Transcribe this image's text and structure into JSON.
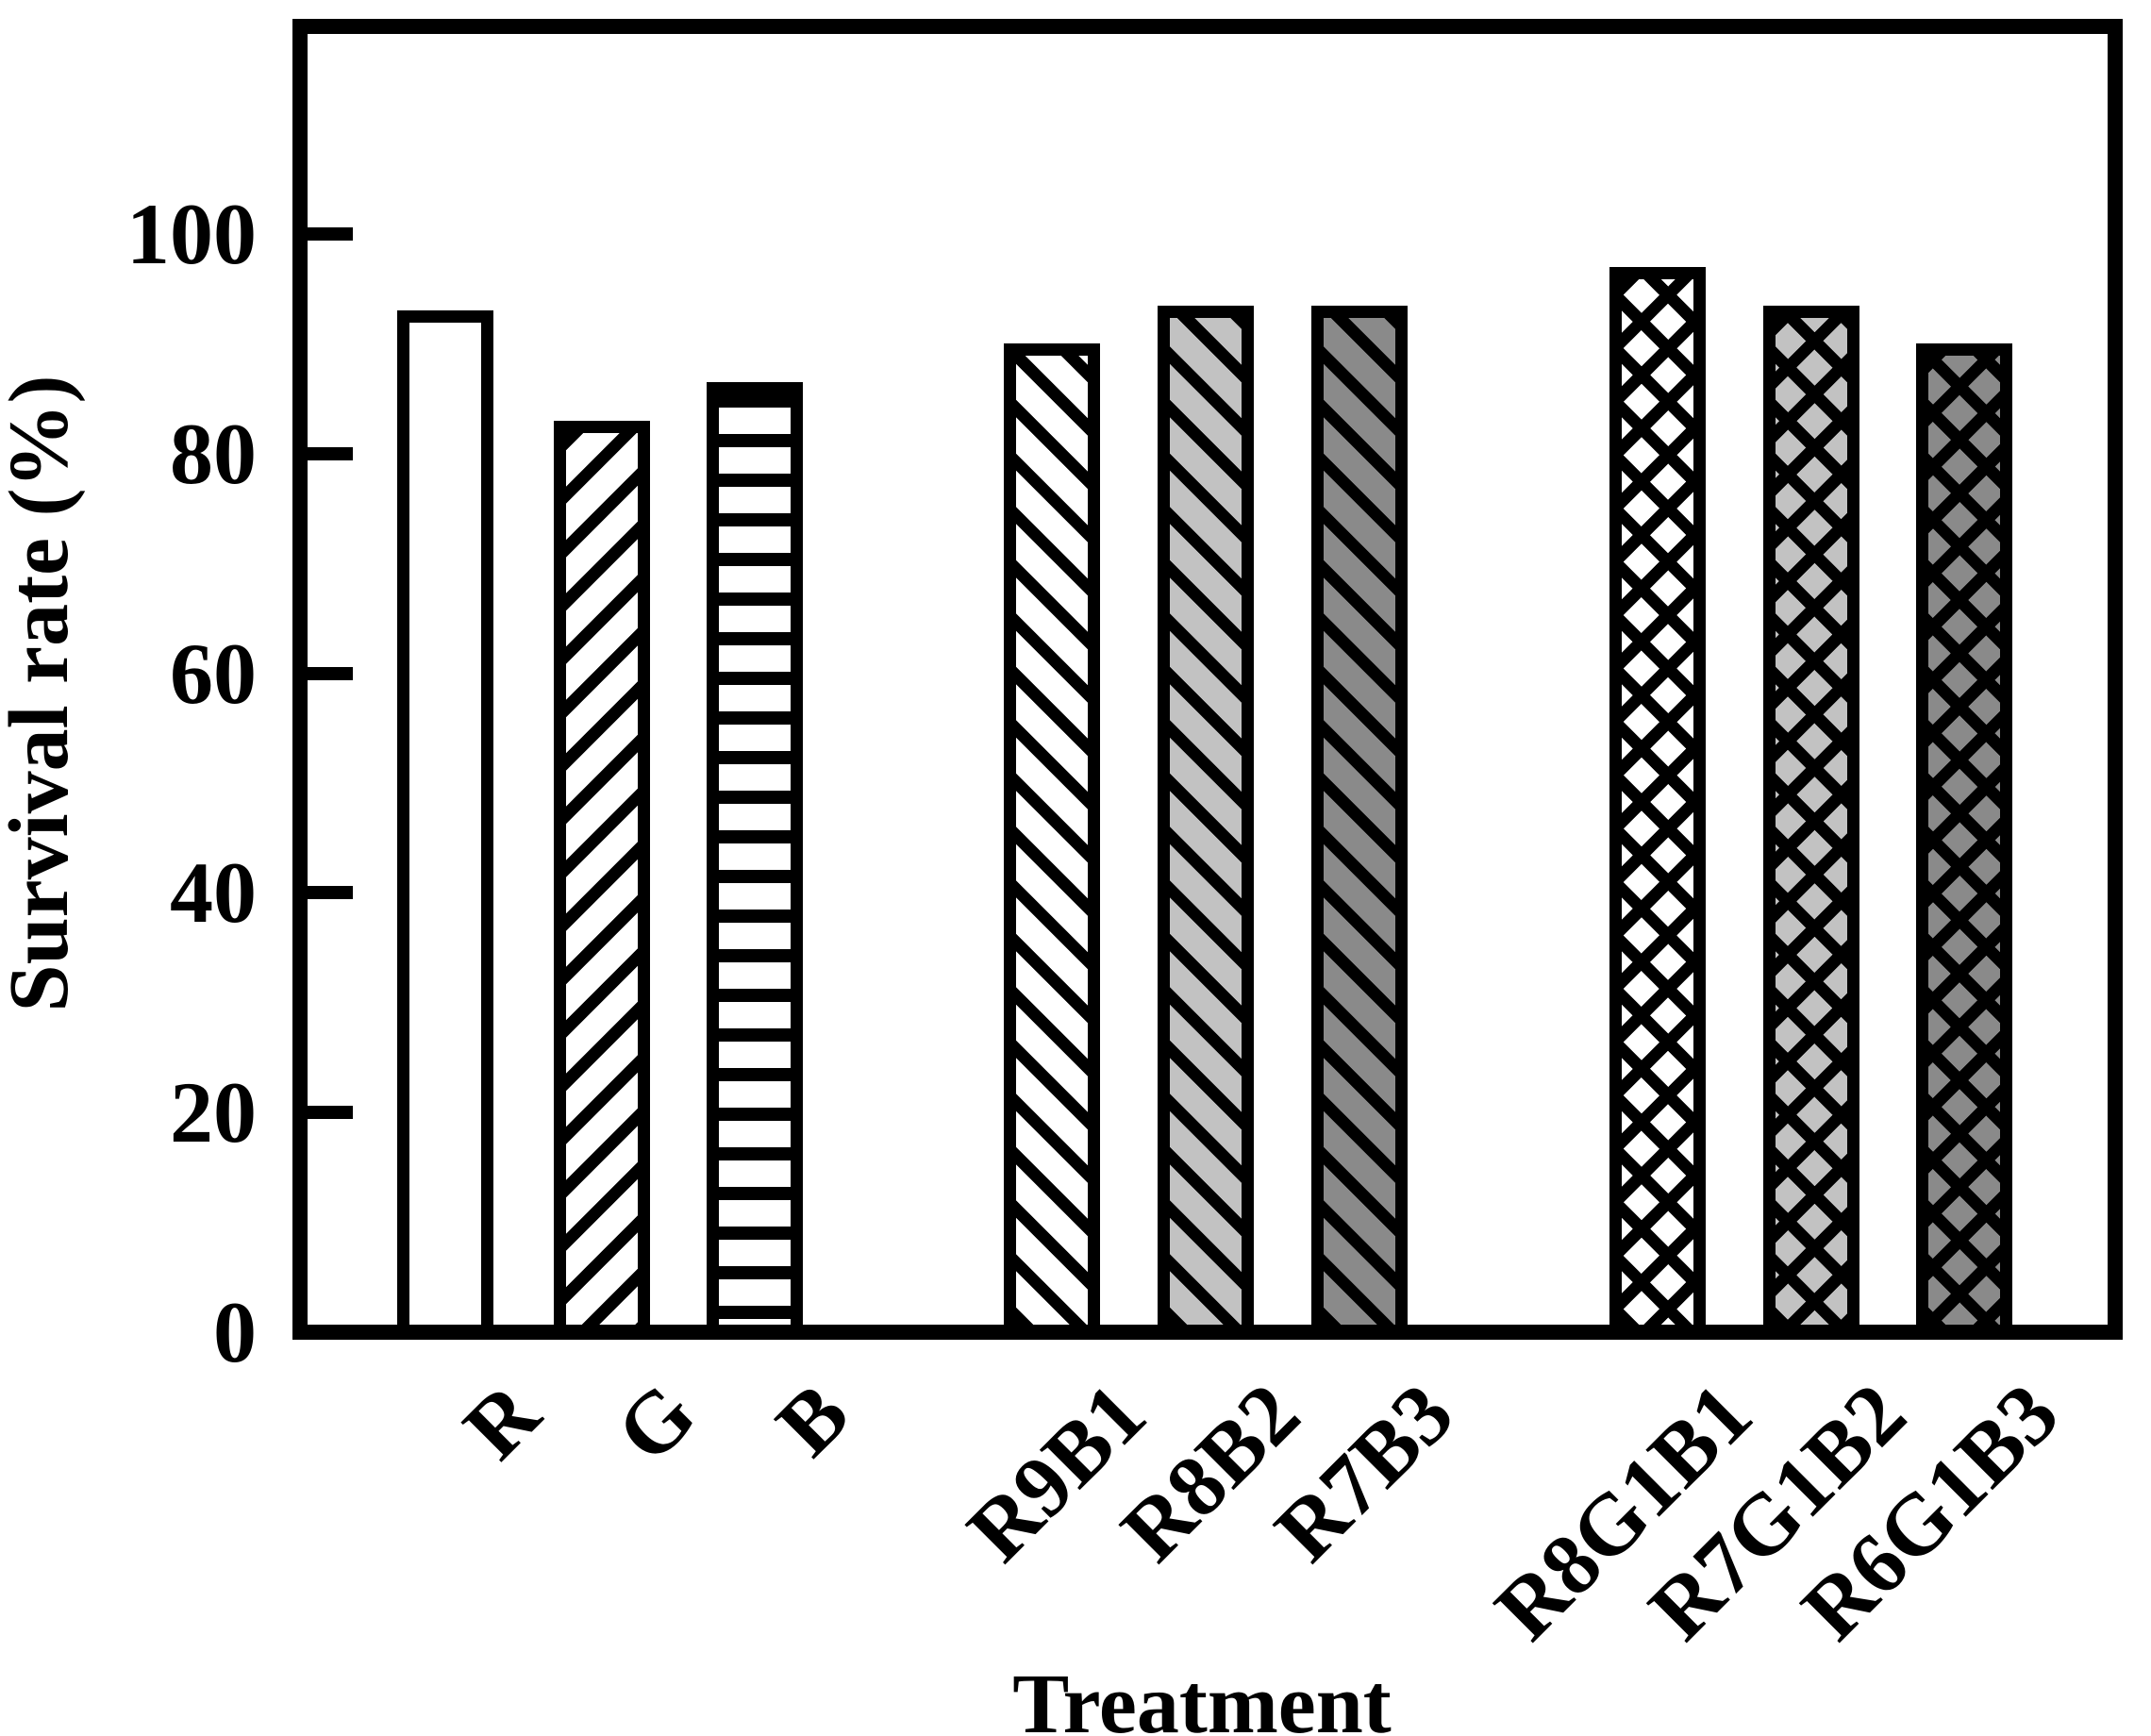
{
  "figure": {
    "background": "#ffffff",
    "frame_color": "#000000"
  },
  "chart_data": {
    "type": "bar",
    "title": "",
    "xlabel": "Treatment",
    "ylabel": "Survival rate (%)",
    "categories": [
      "R",
      "G",
      "B",
      "R9B1",
      "R8B2",
      "R7B3",
      "R8G1B1",
      "R7G1B2",
      "R6G1B3"
    ],
    "values": [
      93,
      83,
      86.5,
      90,
      93.5,
      93.5,
      97,
      93.5,
      90
    ],
    "styles": [
      {
        "fill": "#ffffff",
        "hatch": "none"
      },
      {
        "fill": "#ffffff",
        "hatch": "/"
      },
      {
        "fill": "#ffffff",
        "hatch": "-"
      },
      {
        "fill": "#ffffff",
        "hatch": "\\"
      },
      {
        "fill": "#c2c2c2",
        "hatch": "\\"
      },
      {
        "fill": "#8a8a8a",
        "hatch": "\\"
      },
      {
        "fill": "#ffffff",
        "hatch": "x"
      },
      {
        "fill": "#c2c2c2",
        "hatch": "x"
      },
      {
        "fill": "#8a8a8a",
        "hatch": "x"
      }
    ],
    "groups": [
      [
        0,
        1,
        2
      ],
      [
        3,
        4,
        5
      ],
      [
        6,
        7,
        8
      ]
    ],
    "yticks": [
      0,
      20,
      40,
      60,
      80,
      100
    ],
    "ylim": [
      0,
      119
    ],
    "grid": false,
    "legend": false,
    "bar_edge_color": "#000000",
    "hatch_color": "#000000"
  }
}
